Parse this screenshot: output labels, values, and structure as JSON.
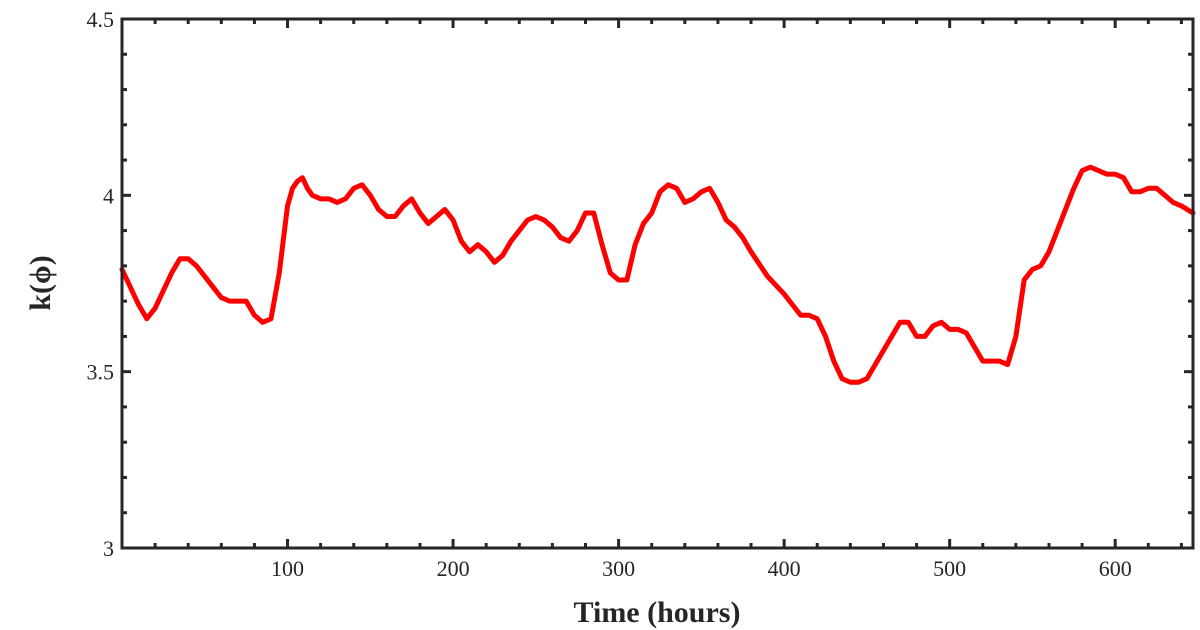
{
  "chart_data": {
    "type": "line",
    "title": "",
    "xlabel": "Time (hours)",
    "ylabel": "k(ϕ)",
    "xlim": [
      0,
      647
    ],
    "ylim": [
      3,
      4.5
    ],
    "xticks": [
      100,
      200,
      300,
      400,
      500,
      600
    ],
    "xtick_labels": [
      "100",
      "200",
      "300",
      "400",
      "500",
      "600"
    ],
    "yticks": [
      3,
      3.5,
      4,
      4.5
    ],
    "ytick_labels": [
      "3",
      "3.5",
      "4",
      "4.5"
    ],
    "grid": false,
    "legend": "none",
    "series": [
      {
        "color": "#ff0000",
        "x": [
          0,
          5,
          10,
          15,
          20,
          25,
          30,
          35,
          40,
          45,
          50,
          55,
          60,
          65,
          70,
          75,
          80,
          85,
          90,
          95,
          100,
          103,
          106,
          109,
          112,
          115,
          120,
          125,
          130,
          135,
          140,
          145,
          150,
          155,
          160,
          165,
          170,
          175,
          180,
          185,
          190,
          195,
          200,
          205,
          210,
          215,
          220,
          225,
          230,
          235,
          240,
          245,
          250,
          255,
          260,
          265,
          270,
          275,
          280,
          285,
          290,
          295,
          300,
          305,
          310,
          315,
          320,
          325,
          330,
          335,
          340,
          345,
          350,
          355,
          360,
          365,
          370,
          375,
          380,
          390,
          400,
          410,
          415,
          420,
          425,
          430,
          435,
          440,
          445,
          450,
          455,
          460,
          465,
          470,
          475,
          480,
          485,
          490,
          495,
          500,
          505,
          510,
          515,
          520,
          525,
          530,
          535,
          540,
          545,
          550,
          555,
          560,
          565,
          570,
          575,
          580,
          585,
          590,
          595,
          600,
          605,
          610,
          615,
          620,
          625,
          630,
          635,
          640,
          647
        ],
        "y": [
          3.79,
          3.74,
          3.69,
          3.65,
          3.68,
          3.73,
          3.78,
          3.82,
          3.82,
          3.8,
          3.77,
          3.74,
          3.71,
          3.7,
          3.7,
          3.7,
          3.66,
          3.64,
          3.65,
          3.78,
          3.97,
          4.02,
          4.04,
          4.05,
          4.02,
          4.0,
          3.99,
          3.99,
          3.98,
          3.99,
          4.02,
          4.03,
          4.0,
          3.96,
          3.94,
          3.94,
          3.97,
          3.99,
          3.95,
          3.92,
          3.94,
          3.96,
          3.93,
          3.87,
          3.84,
          3.86,
          3.84,
          3.81,
          3.83,
          3.87,
          3.9,
          3.93,
          3.94,
          3.93,
          3.91,
          3.88,
          3.87,
          3.9,
          3.95,
          3.95,
          3.86,
          3.78,
          3.76,
          3.76,
          3.86,
          3.92,
          3.95,
          4.01,
          4.03,
          4.02,
          3.98,
          3.99,
          4.01,
          4.02,
          3.98,
          3.93,
          3.91,
          3.88,
          3.84,
          3.77,
          3.72,
          3.66,
          3.66,
          3.65,
          3.6,
          3.53,
          3.48,
          3.47,
          3.47,
          3.48,
          3.52,
          3.56,
          3.6,
          3.64,
          3.64,
          3.6,
          3.6,
          3.63,
          3.64,
          3.62,
          3.62,
          3.61,
          3.57,
          3.53,
          3.53,
          3.53,
          3.52,
          3.6,
          3.76,
          3.79,
          3.8,
          3.84,
          3.9,
          3.96,
          4.02,
          4.07,
          4.08,
          4.07,
          4.06,
          4.06,
          4.05,
          4.01,
          4.01,
          4.02,
          4.02,
          4.0,
          3.98,
          3.97,
          3.95
        ]
      }
    ]
  }
}
